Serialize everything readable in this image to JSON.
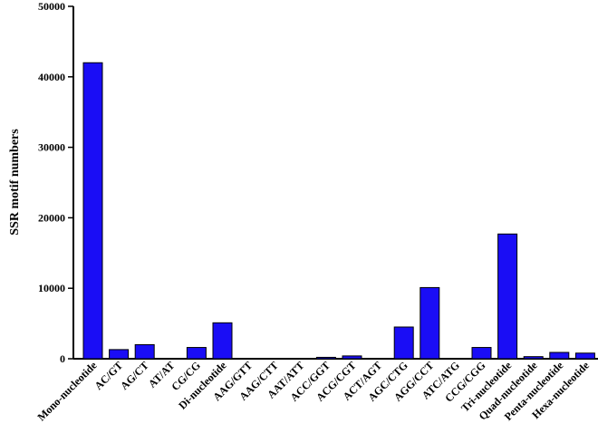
{
  "chart_data": {
    "type": "bar",
    "title": "",
    "xlabel": "",
    "ylabel": "SSR motif numbers",
    "ylim": [
      0,
      50000
    ],
    "yticks": [
      0,
      10000,
      20000,
      30000,
      40000,
      50000
    ],
    "grid": false,
    "bar_color": "#1a0df5",
    "categories": [
      "Mono-nucleotide",
      "AC/GT",
      "AG/CT",
      "AT/AT",
      "CG/CG",
      "Di-nucleotide",
      "AAG/GTT",
      "AAG/CTT",
      "AAT/ATT",
      "ACC/GGT",
      "ACG/CGT",
      "ACT/AGT",
      "AGC/CTG",
      "AGG/CCT",
      "ATC/ATG",
      "CCG/CGG",
      "Tri-nucleotide",
      "Quad-nucleotide",
      "Penta-nucleotide",
      "Hexa-nucleotide"
    ],
    "values": [
      42000,
      1300,
      2000,
      0,
      1600,
      5100,
      0,
      0,
      0,
      200,
      400,
      0,
      4500,
      10100,
      0,
      1600,
      17700,
      300,
      900,
      800
    ]
  }
}
